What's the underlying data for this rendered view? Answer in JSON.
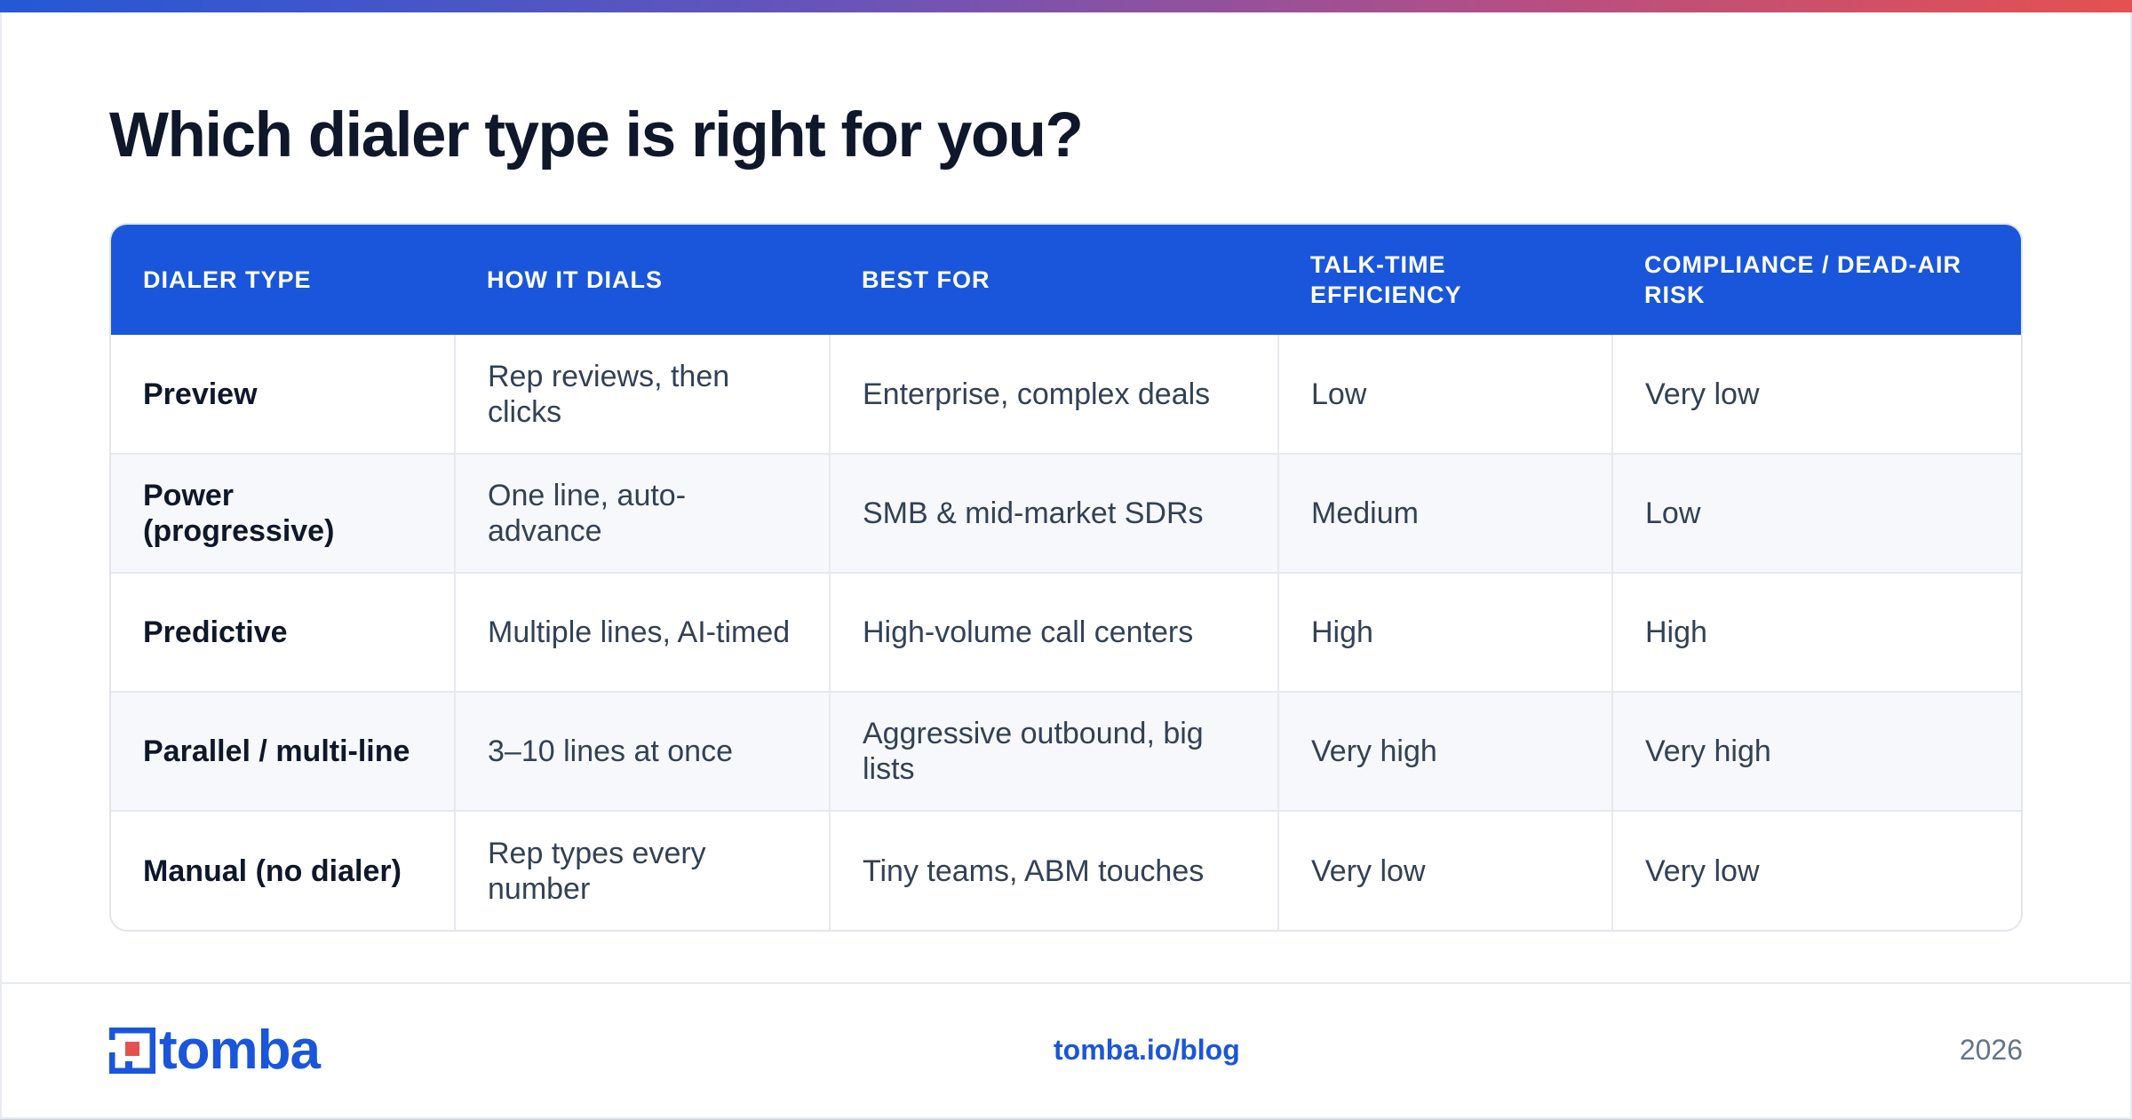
{
  "title": "Which dialer type is right for you?",
  "table": {
    "headers": [
      "DIALER TYPE",
      "HOW IT DIALS",
      "BEST FOR",
      "TALK-TIME EFFICIENCY",
      "COMPLIANCE / DEAD-AIR RISK"
    ],
    "rows": [
      [
        "Preview",
        "Rep reviews, then clicks",
        "Enterprise, complex deals",
        "Low",
        "Very low"
      ],
      [
        "Power (progressive)",
        "One line, auto-advance",
        "SMB & mid-market SDRs",
        "Medium",
        "Low"
      ],
      [
        "Predictive",
        "Multiple lines, AI-timed",
        "High-volume call centers",
        "High",
        "High"
      ],
      [
        "Parallel / multi-line",
        "3–10 lines at once",
        "Aggressive outbound, big lists",
        "Very high",
        "Very high"
      ],
      [
        "Manual (no dialer)",
        "Rep types every number",
        "Tiny teams, ABM touches",
        "Very low",
        "Very low"
      ]
    ]
  },
  "footer": {
    "logo_text": "tomba",
    "link": "tomba.io/blog",
    "year": "2026"
  },
  "colors": {
    "brand_blue": "#1a56db",
    "accent_red": "#e5514f",
    "logo_icon": "tomba-logo-icon"
  }
}
